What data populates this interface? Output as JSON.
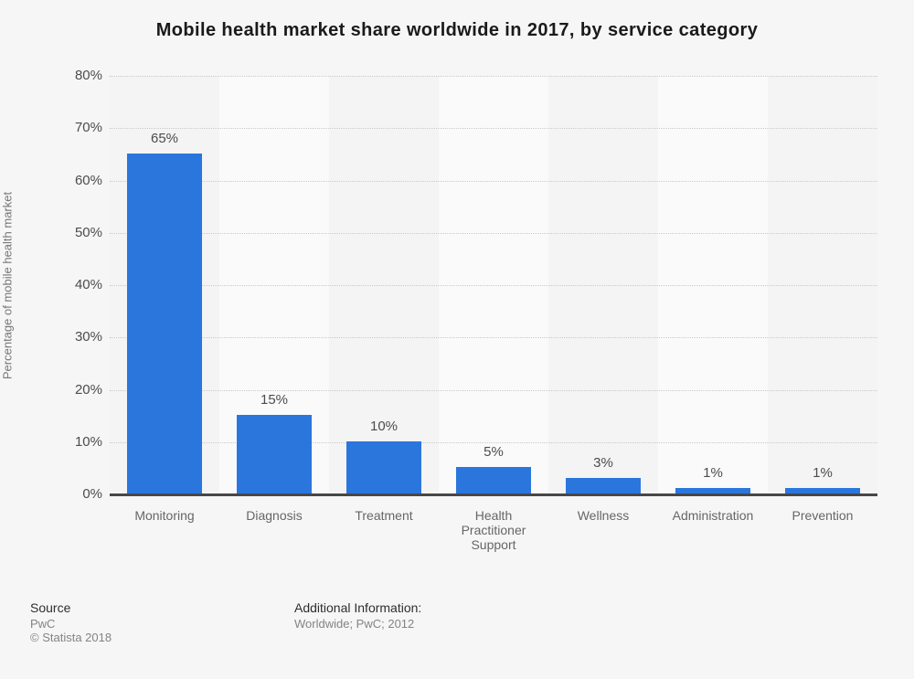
{
  "chart_data": {
    "type": "bar",
    "title": "Mobile health market share worldwide in 2017, by service category",
    "categories": [
      "Monitoring",
      "Diagnosis",
      "Treatment",
      "Health Practitioner Support",
      "Wellness",
      "Administration",
      "Prevention"
    ],
    "values": [
      65,
      15,
      10,
      5,
      3,
      1,
      1
    ],
    "value_labels": [
      "65%",
      "15%",
      "10%",
      "5%",
      "3%",
      "1%",
      "1%"
    ],
    "xlabel": "",
    "ylabel": "Percentage of mobile health market",
    "ylim": [
      0,
      80
    ],
    "ytick_step": 10,
    "ytick_labels": [
      "0%",
      "10%",
      "20%",
      "30%",
      "40%",
      "50%",
      "60%",
      "70%",
      "80%"
    ],
    "grid": "horizontal dotted lines, on",
    "legend": "none",
    "bar_color": "#2b76dd"
  },
  "footer": {
    "source_heading": "Source",
    "source_name": "PwC",
    "copyright": "© Statista 2018",
    "additional_heading": "Additional Information:",
    "additional_text": "Worldwide; PwC; 2012"
  },
  "colors": {
    "background": "#f6f6f6",
    "band_odd": "#f4f4f4",
    "band_even": "#fafafa",
    "bar": "#2b76dd",
    "axis_line": "#474747",
    "grid_line": "#c9c9c9",
    "title_text": "#1a1a1a",
    "tick_text": "#4c4c4c",
    "category_text": "#666666",
    "muted_text": "#848484"
  }
}
